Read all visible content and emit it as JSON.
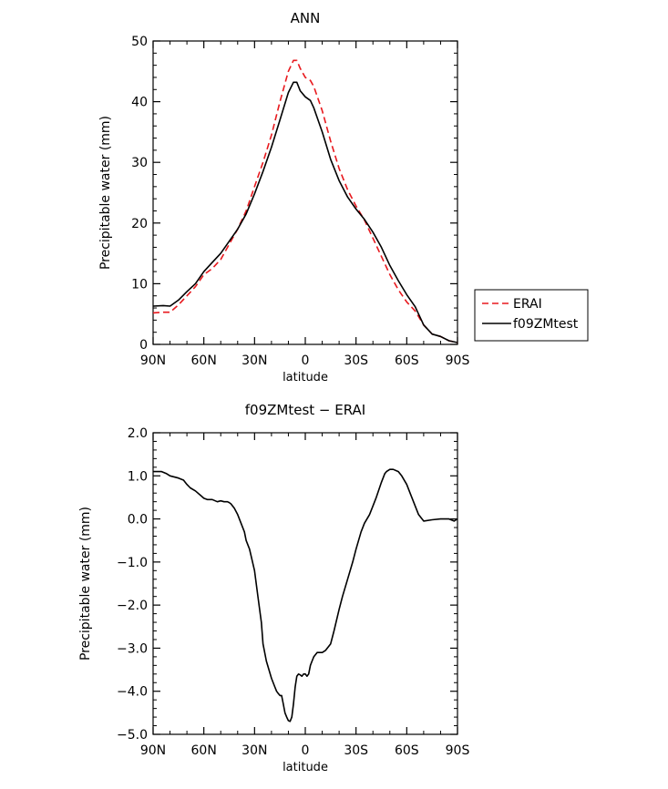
{
  "chart_data": [
    {
      "type": "line",
      "title": "ANN",
      "xlabel": "latitude",
      "ylabel": "Precipitable water (mm)",
      "xlim": [
        90,
        -90
      ],
      "ylim": [
        0,
        50
      ],
      "xticks": [
        {
          "v": 90,
          "label": "90N"
        },
        {
          "v": 60,
          "label": "60N"
        },
        {
          "v": 30,
          "label": "30N"
        },
        {
          "v": 0,
          "label": "0"
        },
        {
          "v": -30,
          "label": "30S"
        },
        {
          "v": -60,
          "label": "60S"
        },
        {
          "v": -90,
          "label": "90S"
        }
      ],
      "yticks": [
        {
          "v": 0,
          "label": "0"
        },
        {
          "v": 10,
          "label": "10"
        },
        {
          "v": 20,
          "label": "20"
        },
        {
          "v": 30,
          "label": "30"
        },
        {
          "v": 40,
          "label": "40"
        },
        {
          "v": 50,
          "label": "50"
        }
      ],
      "legend": {
        "placement": "right"
      },
      "series": [
        {
          "name": "ERAI",
          "color": "#e8191e",
          "dash": "dashed",
          "x": [
            90,
            84,
            80,
            75,
            70,
            65,
            60,
            55,
            50,
            45,
            40,
            35,
            30,
            25,
            20,
            15,
            10,
            7,
            5,
            3,
            0,
            -3,
            -5,
            -10,
            -15,
            -20,
            -25,
            -30,
            -35,
            -40,
            -45,
            -50,
            -55,
            -60,
            -65,
            -70,
            -75,
            -80,
            -85,
            -90
          ],
          "y": [
            5.2,
            5.3,
            5.3,
            6.5,
            8.0,
            9.5,
            11.5,
            12.5,
            14.0,
            16.5,
            19.0,
            22.0,
            26.0,
            30.0,
            34.5,
            40.0,
            45.0,
            46.8,
            46.8,
            45.5,
            44.0,
            43.5,
            42.5,
            38.5,
            33.5,
            29.0,
            25.5,
            22.8,
            20.5,
            17.5,
            14.5,
            11.5,
            9.0,
            7.0,
            5.5,
            3.2,
            1.7,
            1.3,
            0.6,
            0.3
          ]
        },
        {
          "name": "f09ZMtest",
          "color": "#000000",
          "dash": "solid",
          "x": [
            90,
            84,
            80,
            75,
            70,
            65,
            60,
            55,
            50,
            45,
            40,
            35,
            30,
            25,
            20,
            15,
            10,
            7,
            5,
            3,
            0,
            -3,
            -5,
            -10,
            -15,
            -20,
            -25,
            -30,
            -35,
            -40,
            -45,
            -50,
            -55,
            -60,
            -65,
            -70,
            -75,
            -80,
            -85,
            -90
          ],
          "y": [
            6.3,
            6.4,
            6.3,
            7.3,
            8.7,
            10.0,
            12.0,
            13.5,
            15.0,
            17.0,
            19.0,
            21.5,
            24.8,
            28.5,
            32.5,
            37.0,
            41.5,
            43.2,
            43.2,
            41.8,
            40.8,
            40.2,
            39.0,
            35.0,
            30.5,
            27.0,
            24.3,
            22.3,
            20.6,
            18.5,
            16.0,
            13.0,
            10.5,
            8.2,
            6.2,
            3.2,
            1.7,
            1.3,
            0.6,
            0.3
          ]
        }
      ]
    },
    {
      "type": "line",
      "title": "f09ZMtest  −  ERAI",
      "xlabel": "latitude",
      "ylabel": "Precipitable water (mm)",
      "xlim": [
        90,
        -90
      ],
      "ylim": [
        -5.0,
        2.0
      ],
      "xticks": [
        {
          "v": 90,
          "label": "90N"
        },
        {
          "v": 60,
          "label": "60N"
        },
        {
          "v": 30,
          "label": "30N"
        },
        {
          "v": 0,
          "label": "0"
        },
        {
          "v": -30,
          "label": "30S"
        },
        {
          "v": -60,
          "label": "60S"
        },
        {
          "v": -90,
          "label": "90S"
        }
      ],
      "yticks": [
        {
          "v": 2,
          "label": "2.0"
        },
        {
          "v": 1,
          "label": "1.0"
        },
        {
          "v": 0,
          "label": "0.0"
        },
        {
          "v": -1,
          "label": "−1.0"
        },
        {
          "v": -2,
          "label": "−2.0"
        },
        {
          "v": -3,
          "label": "−3.0"
        },
        {
          "v": -4,
          "label": "−4.0"
        },
        {
          "v": -5,
          "label": "−5.0"
        }
      ],
      "series": [
        {
          "color": "#000000",
          "dash": "solid",
          "x": [
            90,
            87,
            85,
            82,
            80,
            75,
            72,
            70,
            68,
            65,
            62,
            60,
            58,
            55,
            52,
            50,
            48,
            46,
            45,
            44,
            42,
            40,
            38,
            36,
            35,
            33,
            30,
            28,
            26,
            25,
            23,
            20,
            18,
            17,
            16,
            15,
            14,
            13,
            12,
            11,
            10,
            9,
            8,
            7,
            6,
            5,
            4,
            3,
            2,
            1,
            0,
            -1,
            -2,
            -3,
            -4,
            -5,
            -7,
            -10,
            -12,
            -15,
            -17,
            -20,
            -22,
            -25,
            -28,
            -30,
            -33,
            -35,
            -38,
            -40,
            -42,
            -45,
            -47,
            -48,
            -50,
            -52,
            -55,
            -57,
            -60,
            -62,
            -65,
            -67,
            -70,
            -75,
            -80,
            -85,
            -88,
            -90
          ],
          "y": [
            1.1,
            1.1,
            1.1,
            1.05,
            1.0,
            0.95,
            0.9,
            0.8,
            0.72,
            0.65,
            0.55,
            0.48,
            0.45,
            0.45,
            0.4,
            0.42,
            0.4,
            0.4,
            0.38,
            0.35,
            0.25,
            0.1,
            -0.1,
            -0.3,
            -0.5,
            -0.7,
            -1.2,
            -1.8,
            -2.4,
            -2.9,
            -3.3,
            -3.7,
            -3.9,
            -4.0,
            -4.05,
            -4.1,
            -4.1,
            -4.3,
            -4.5,
            -4.6,
            -4.68,
            -4.7,
            -4.6,
            -4.3,
            -3.9,
            -3.65,
            -3.6,
            -3.62,
            -3.65,
            -3.6,
            -3.6,
            -3.65,
            -3.6,
            -3.4,
            -3.3,
            -3.2,
            -3.1,
            -3.1,
            -3.05,
            -2.9,
            -2.6,
            -2.1,
            -1.8,
            -1.4,
            -1.0,
            -0.7,
            -0.3,
            -0.1,
            0.1,
            0.3,
            0.5,
            0.85,
            1.05,
            1.1,
            1.15,
            1.15,
            1.1,
            1.0,
            0.8,
            0.6,
            0.3,
            0.1,
            -0.05,
            -0.02,
            0.0,
            0.0,
            -0.05,
            0.0
          ]
        }
      ]
    }
  ]
}
